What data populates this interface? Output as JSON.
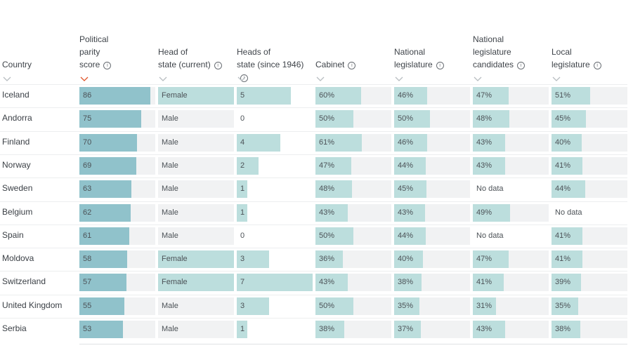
{
  "columns": [
    {
      "id": "country",
      "label": "Country",
      "info": false,
      "sorted": false
    },
    {
      "id": "score",
      "label": "Political parity score",
      "info": true,
      "sorted": true
    },
    {
      "id": "hos_current",
      "label": "Head of state (current)",
      "info": true,
      "sorted": false
    },
    {
      "id": "hos_since",
      "label": "Heads of state (since 1946)",
      "info": true,
      "sorted": false
    },
    {
      "id": "cabinet",
      "label": "Cabinet",
      "info": true,
      "sorted": false
    },
    {
      "id": "national",
      "label": "National legislature",
      "info": true,
      "sorted": false
    },
    {
      "id": "candidates",
      "label": "National legislature candidates",
      "info": true,
      "sorted": false
    },
    {
      "id": "local",
      "label": "Local legislature",
      "info": true,
      "sorted": false
    }
  ],
  "colors": {
    "score_bar": "#90c2cb",
    "light_bar": "#bcdedd",
    "track": "#f1f2f3",
    "sort_active": "#e0562b",
    "sort_idle": "#b8bdc1"
  },
  "chart_data": {
    "type": "table",
    "rows": [
      {
        "country": "Iceland",
        "score": "86",
        "hos_current": "Female",
        "hos_since": "5",
        "cabinet": "60%",
        "national": "46%",
        "candidates": "47%",
        "local": "51%"
      },
      {
        "country": "Andorra",
        "score": "75",
        "hos_current": "Male",
        "hos_since": "0",
        "cabinet": "50%",
        "national": "50%",
        "candidates": "48%",
        "local": "45%"
      },
      {
        "country": "Finland",
        "score": "70",
        "hos_current": "Male",
        "hos_since": "4",
        "cabinet": "61%",
        "national": "46%",
        "candidates": "43%",
        "local": "40%"
      },
      {
        "country": "Norway",
        "score": "69",
        "hos_current": "Male",
        "hos_since": "2",
        "cabinet": "47%",
        "national": "44%",
        "candidates": "43%",
        "local": "41%"
      },
      {
        "country": "Sweden",
        "score": "63",
        "hos_current": "Male",
        "hos_since": "1",
        "cabinet": "48%",
        "national": "45%",
        "candidates": "No data",
        "local": "44%"
      },
      {
        "country": "Belgium",
        "score": "62",
        "hos_current": "Male",
        "hos_since": "1",
        "cabinet": "43%",
        "national": "43%",
        "candidates": "49%",
        "local": "No data"
      },
      {
        "country": "Spain",
        "score": "61",
        "hos_current": "Male",
        "hos_since": "0",
        "cabinet": "50%",
        "national": "44%",
        "candidates": "No data",
        "local": "41%"
      },
      {
        "country": "Moldova",
        "score": "58",
        "hos_current": "Female",
        "hos_since": "3",
        "cabinet": "36%",
        "national": "40%",
        "candidates": "47%",
        "local": "41%"
      },
      {
        "country": "Switzerland",
        "score": "57",
        "hos_current": "Female",
        "hos_since": "7",
        "cabinet": "43%",
        "national": "38%",
        "candidates": "41%",
        "local": "39%"
      },
      {
        "country": "United Kingdom",
        "score": "55",
        "hos_current": "Male",
        "hos_since": "3",
        "cabinet": "50%",
        "national": "35%",
        "candidates": "31%",
        "local": "35%"
      },
      {
        "country": "Serbia",
        "score": "53",
        "hos_current": "Male",
        "hos_since": "1",
        "cabinet": "38%",
        "national": "37%",
        "candidates": "43%",
        "local": "38%"
      }
    ]
  }
}
